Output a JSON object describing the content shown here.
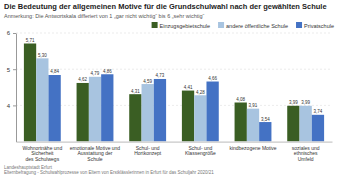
{
  "chart_data": {
    "type": "bar",
    "title": "Die Bedeutung der allgemeinen Motive für die Grundschulwahl nach der gewählten Schule",
    "annotation": "Anmerkung: Die Antwortskala differiert von 1 „gar nicht wichtig“ bis 6 „sehr wichtig“",
    "source": "Landeshauptstadt Erfurt\nElternbefragung - Schulwahlprozesse von Eltern von Erstklässlerinnen in Erfurt für das Schuljahr 2020/21",
    "categories": [
      "Wohnortnähe und Sicherheit\ndes Schulwegs",
      "emotionale Motive und\nAusstattung der Schule",
      "Schul- und Hortkonzept",
      "Schul- und Klassengröße",
      "kindbezogene Motive",
      "soziales und ethnisches\nUmfeld"
    ],
    "series": [
      {
        "name": "Einzugsgebietschule",
        "color": "#3a5e23",
        "values": [
          5.71,
          4.62,
          4.31,
          4.41,
          4.08,
          3.99
        ],
        "value_labels": [
          "5,71",
          "4,62",
          "4,31",
          "4,41",
          "4,08",
          "3,99"
        ]
      },
      {
        "name": "andere öffentliche Schule",
        "color": "#a8c4e0",
        "values": [
          5.3,
          4.79,
          4.59,
          4.28,
          3.91,
          3.99
        ],
        "value_labels": [
          "5,30",
          "4,79",
          "4,59",
          "4,28",
          "3,91",
          "3,99"
        ]
      },
      {
        "name": "Privatschule",
        "color": "#4472c4",
        "values": [
          4.84,
          4.86,
          4.73,
          4.66,
          3.54,
          3.74
        ],
        "value_labels": [
          "4,84",
          "4,86",
          "4,73",
          "4,66",
          "3,54",
          "3,74"
        ]
      }
    ],
    "ylim": [
      3.0,
      6.0
    ],
    "yticks": [
      4,
      5,
      6
    ],
    "grid": true,
    "legend": "top",
    "data_labels": true
  }
}
